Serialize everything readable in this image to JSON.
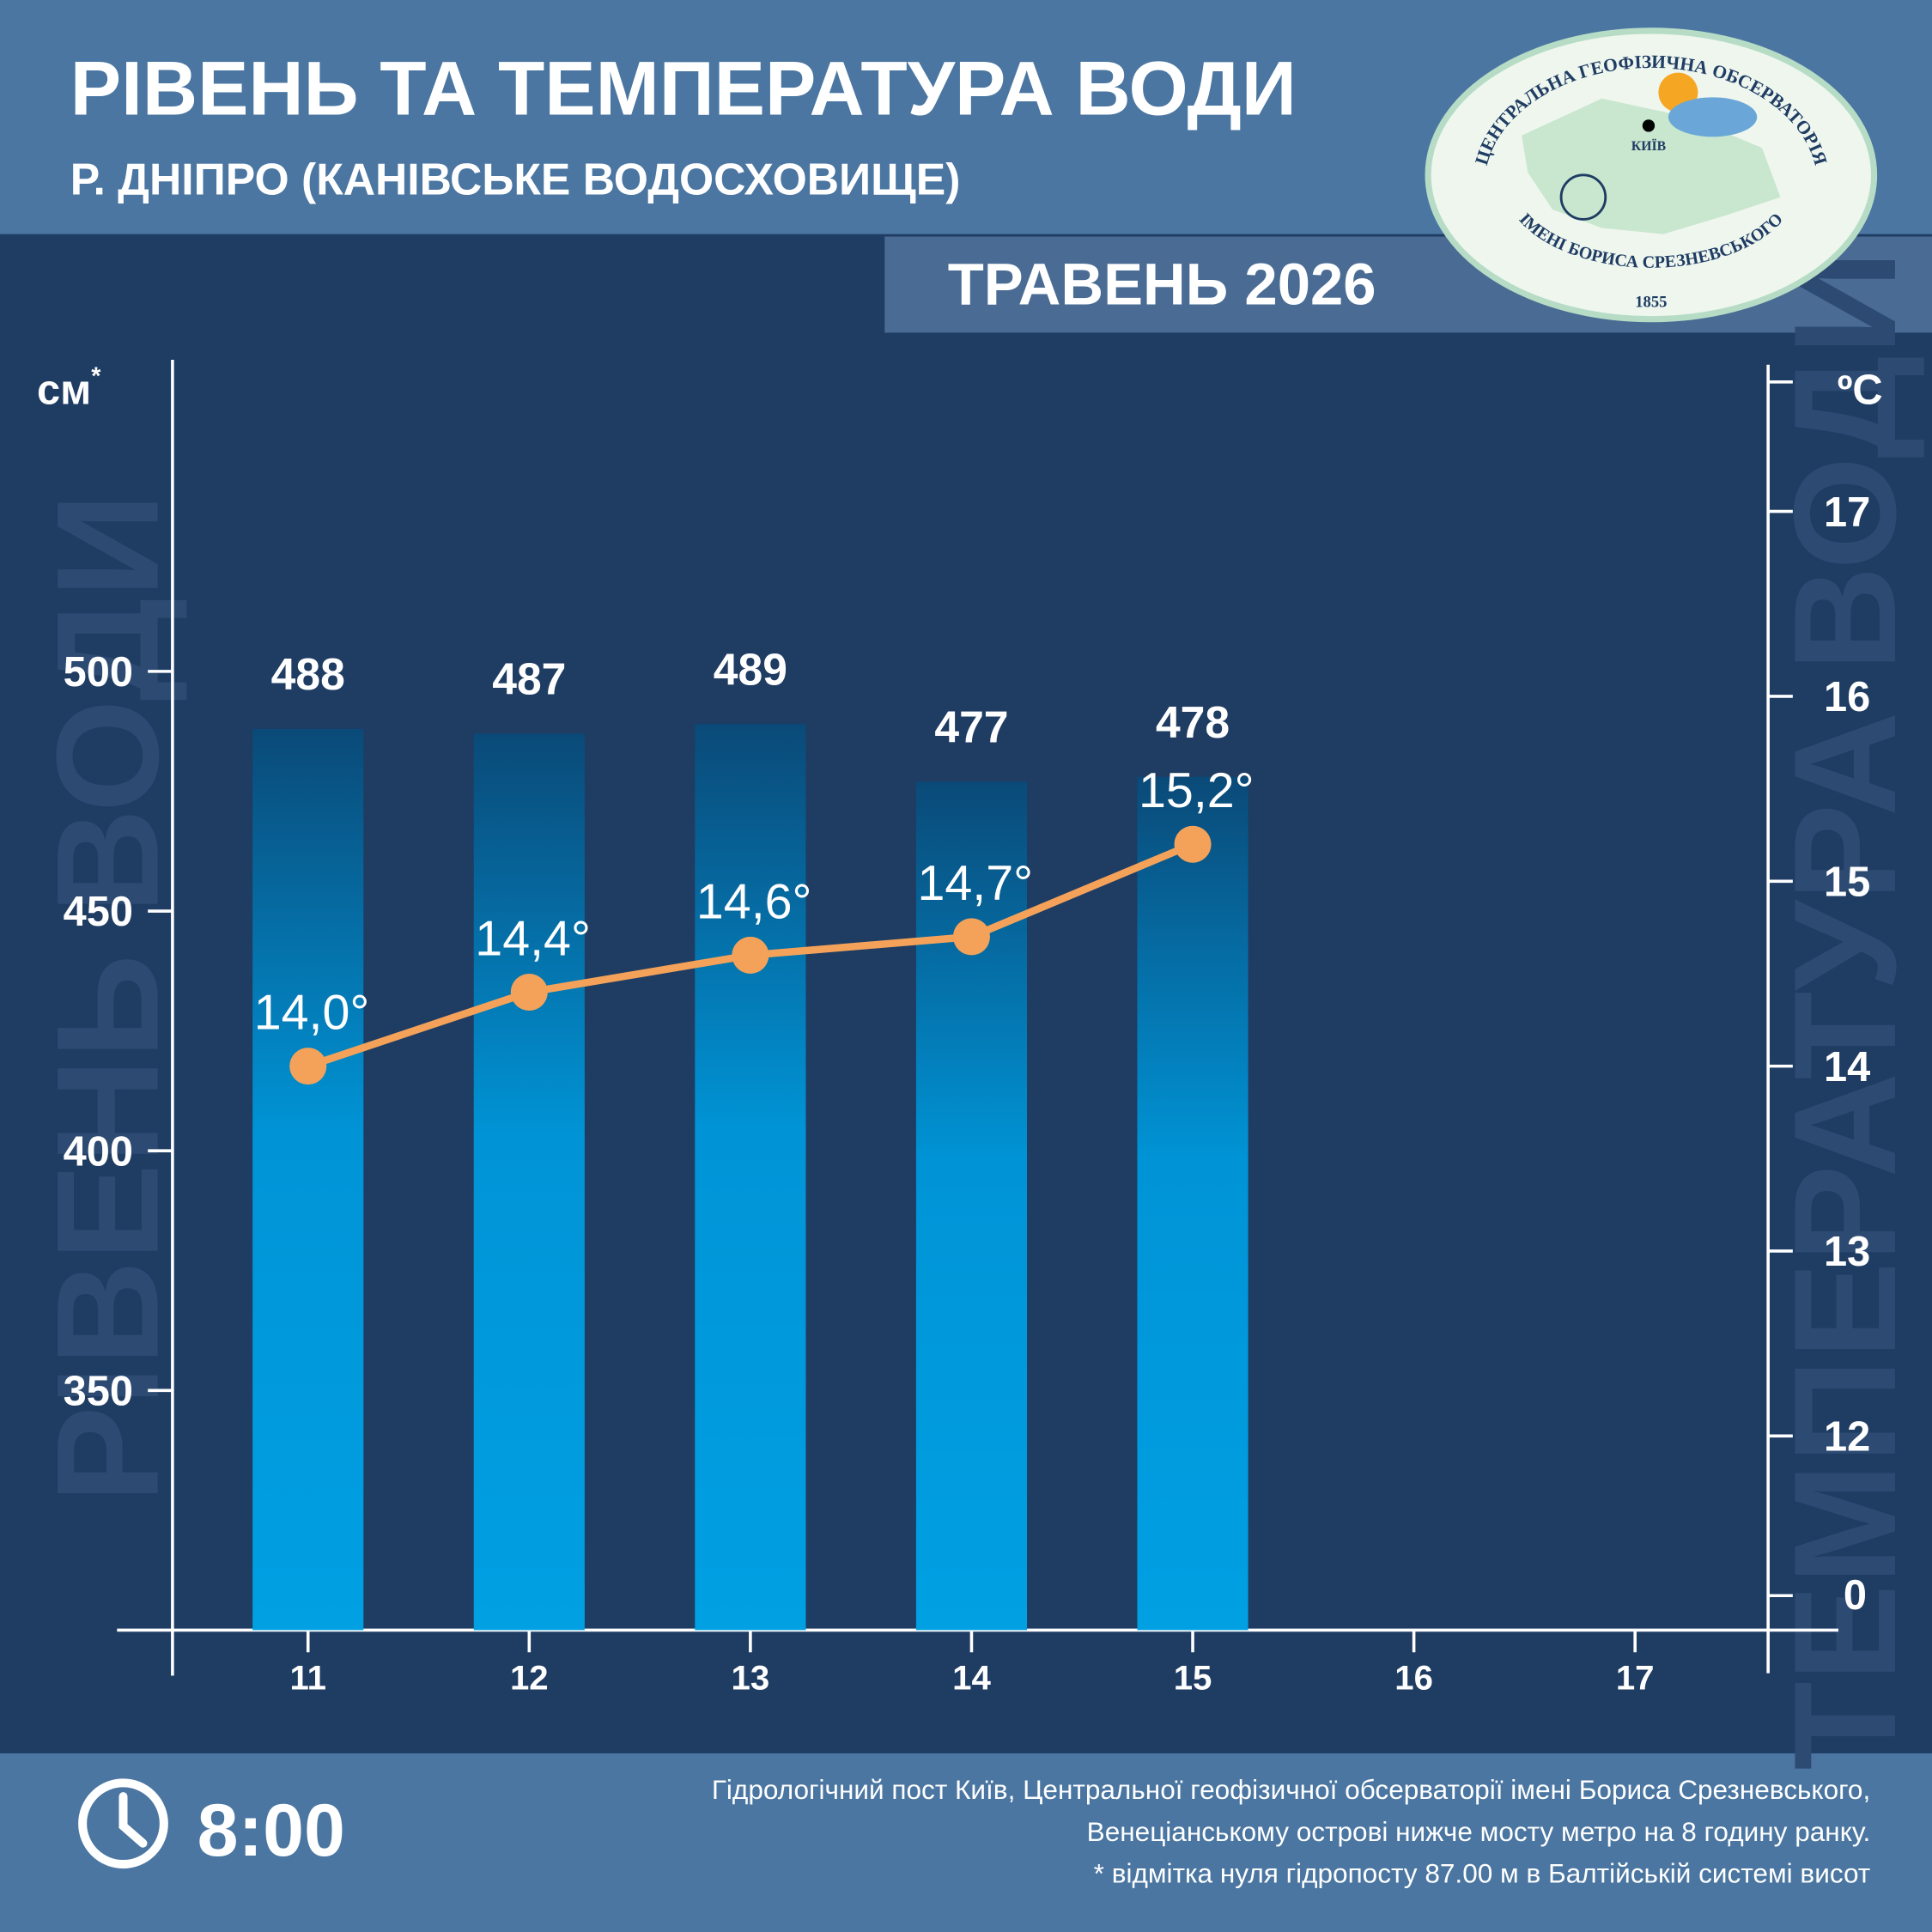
{
  "chart_data": {
    "type": "bar",
    "title": "РІВЕНЬ ТА ТЕМПЕРАТУРА ВОДИ",
    "subtitle": "Р. ДНІПРО (КАНІВСЬКЕ ВОДОСХОВИЩЕ)",
    "period": "ТРАВЕНЬ 2026",
    "y_label": "см",
    "y_label_note": "*",
    "y2_label": "ºC",
    "y_watermark": "РІВЕНЬ ВОДИ",
    "y2_watermark": "ТЕМПЕРАТУРА ВОДИ",
    "y2_break_label": "0",
    "categories": [
      "11",
      "12",
      "13",
      "14",
      "15",
      "16",
      "17"
    ],
    "series": [
      {
        "type": "bar",
        "axis": "y",
        "color": "#00a0e3",
        "values": [
          488,
          487,
          489,
          477,
          478,
          null,
          null
        ]
      },
      {
        "type": "line",
        "axis": "y2",
        "color": "#f4a259",
        "values": [
          14.0,
          14.4,
          14.6,
          14.7,
          15.2,
          null,
          null
        ],
        "value_labels": [
          "14,0°",
          "14,4°",
          "14,6°",
          "14,7°",
          "15,2°",
          null,
          null
        ]
      }
    ],
    "ylim": [
      300,
      565
    ],
    "yticks": [
      350,
      400,
      450,
      500
    ],
    "y2lim": [
      10.95,
      17.82
    ],
    "y2ticks": [
      12,
      13,
      14,
      15,
      16,
      17
    ],
    "time": "8:00",
    "footnote": [
      "Гідрологічний пост Київ, Центральної геофізичної обсерваторії імені Бориса Срезневського,",
      "Венеціанському острові нижче мосту метро  на 8 годину ранку.",
      "* відмітка нуля гідропосту 87.00 м в Балтійській системі висот"
    ],
    "logo": {
      "top": "ЦЕНТРАЛЬНА ГЕОФІЗИЧНА ОБСЕРВАТОРІЯ",
      "bottom": "ІМЕНІ БОРИСА СРЕЗНЕВСЬКОГО",
      "year": "1855",
      "city": "КИЇВ"
    }
  }
}
